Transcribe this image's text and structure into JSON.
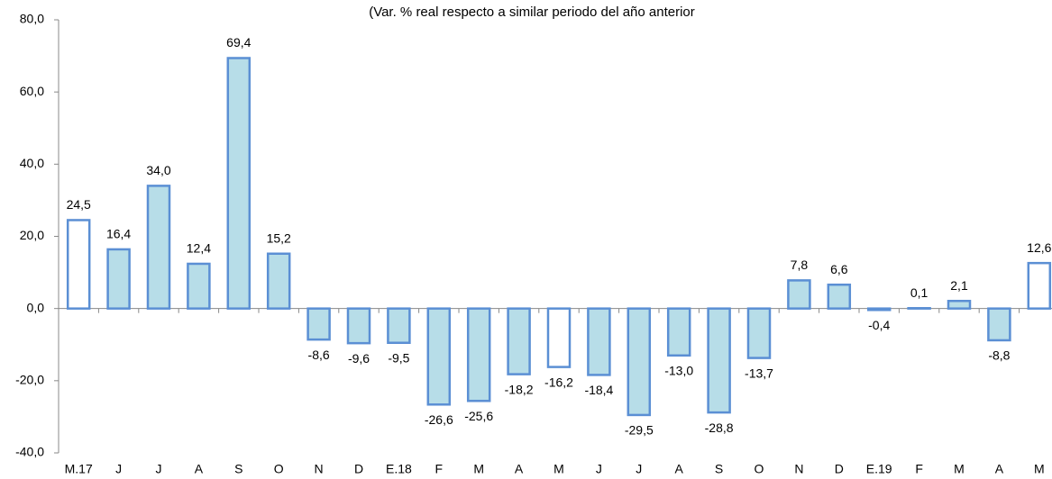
{
  "chart_data": {
    "type": "bar",
    "title": "(Var. % real respecto a similar periodo del año anterior",
    "categories": [
      "M.17",
      "J",
      "J",
      "A",
      "S",
      "O",
      "N",
      "D",
      "E.18",
      "F",
      "M",
      "A",
      "M",
      "J",
      "J",
      "A",
      "S",
      "O",
      "N",
      "D",
      "E.19",
      "F",
      "M",
      "A",
      "M"
    ],
    "values": [
      24.5,
      16.4,
      34.0,
      12.4,
      69.4,
      15.2,
      -8.6,
      -9.6,
      -9.5,
      -26.6,
      -25.6,
      -18.2,
      -16.2,
      -18.4,
      -29.5,
      -13.0,
      -28.8,
      -13.7,
      7.8,
      6.6,
      -0.4,
      0.1,
      2.1,
      -8.8,
      12.6
    ],
    "value_labels": [
      "24,5",
      "16,4",
      "34,0",
      "12,4",
      "69,4",
      "15,2",
      "-8,6",
      "-9,6",
      "-9,5",
      "-26,6",
      "-25,6",
      "-18,2",
      "-16,2",
      "-18,4",
      "-29,5",
      "-13,0",
      "-28,8",
      "-13,7",
      "7,8",
      "6,6",
      "-0,4",
      "0,1",
      "2,1",
      "-8,8",
      "12,6"
    ],
    "colors": [
      "#ffffff",
      "#b7dde8",
      "#b7dde8",
      "#b7dde8",
      "#b7dde8",
      "#b7dde8",
      "#b7dde8",
      "#b7dde8",
      "#b7dde8",
      "#b7dde8",
      "#b7dde8",
      "#b7dde8",
      "#ffffff",
      "#b7dde8",
      "#b7dde8",
      "#b7dde8",
      "#b7dde8",
      "#b7dde8",
      "#b7dde8",
      "#b7dde8",
      "#b7dde8",
      "#b7dde8",
      "#b7dde8",
      "#b7dde8",
      "#ffffff"
    ],
    "edge_color": "#5b8fd4",
    "ylim": [
      -40,
      80
    ],
    "yticks": [
      {
        "value": -40,
        "label": "-40,0"
      },
      {
        "value": -20,
        "label": "-20,0"
      },
      {
        "value": 0,
        "label": "0,0"
      },
      {
        "value": 20,
        "label": "20,0"
      },
      {
        "value": 40,
        "label": "40,0"
      },
      {
        "value": 60,
        "label": "60,0"
      },
      {
        "value": 80,
        "label": "80,0"
      }
    ]
  }
}
